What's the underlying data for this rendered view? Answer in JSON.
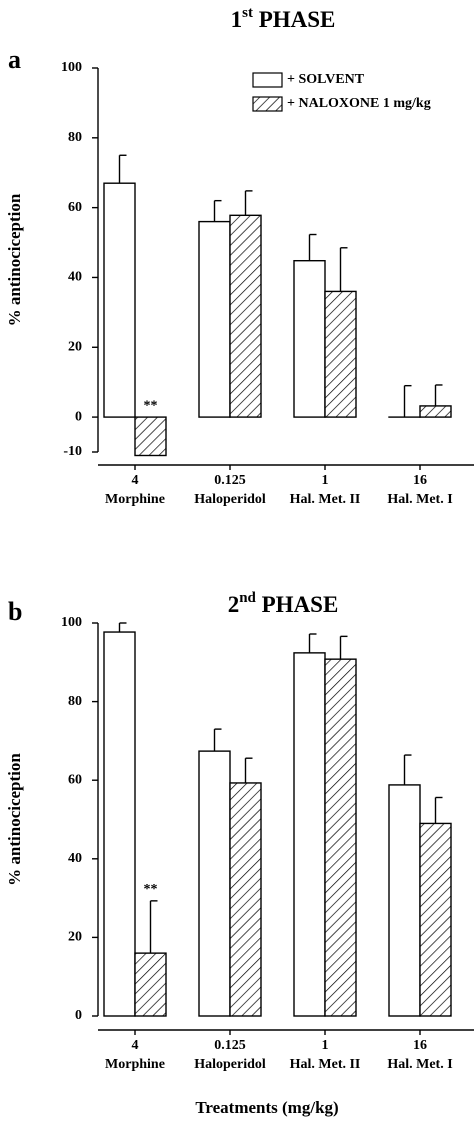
{
  "chart_data": [
    {
      "type": "bar",
      "panel_label": "a",
      "title": "1st PHASE",
      "y_label": "% antinociception",
      "categories": [
        "4",
        "0.125",
        "1",
        "16"
      ],
      "subcategories": [
        "Morphine",
        "Haloperidol",
        "Hal. Met. II",
        "Hal. Met. I"
      ],
      "series": [
        {
          "name": "+ SOLVENT",
          "color": "#ffffff",
          "hatch": false,
          "values": [
            67,
            56,
            44.8,
            0
          ],
          "errors": [
            8,
            6,
            7.5,
            9
          ]
        },
        {
          "name": "+ NALOXONE 1 mg/kg",
          "color": "#ffffff",
          "hatch": true,
          "values": [
            -11,
            57.8,
            36,
            3.2
          ],
          "errors": [
            9,
            7,
            12.5,
            6
          ],
          "star_labels": [
            "**",
            null,
            null,
            null
          ]
        }
      ],
      "ylim": [
        -10,
        100
      ],
      "yticks": [
        -10,
        0,
        20,
        40,
        60,
        80,
        100
      ],
      "legend": true
    },
    {
      "type": "bar",
      "panel_label": "b",
      "title": "2nd PHASE",
      "y_label": "% antinociception",
      "x_label": "Treatments (mg/kg)",
      "categories": [
        "4",
        "0.125",
        "1",
        "16"
      ],
      "subcategories": [
        "Morphine",
        "Haloperidol",
        "Hal. Met. II",
        "Hal. Met. I"
      ],
      "series": [
        {
          "color": "#ffffff",
          "hatch": false,
          "values": [
            97.7,
            67.4,
            92.4,
            58.8
          ],
          "errors": [
            2.3,
            5.6,
            4.8,
            7.6
          ]
        },
        {
          "color": "#ffffff",
          "hatch": true,
          "values": [
            16,
            59.3,
            90.8,
            49
          ],
          "errors": [
            13.3,
            6.3,
            5.8,
            6.6
          ],
          "star_labels": [
            "**",
            null,
            null,
            null
          ]
        }
      ],
      "ylim": [
        0,
        100
      ],
      "yticks": [
        0,
        20,
        40,
        60,
        80,
        100
      ],
      "legend": false
    }
  ]
}
